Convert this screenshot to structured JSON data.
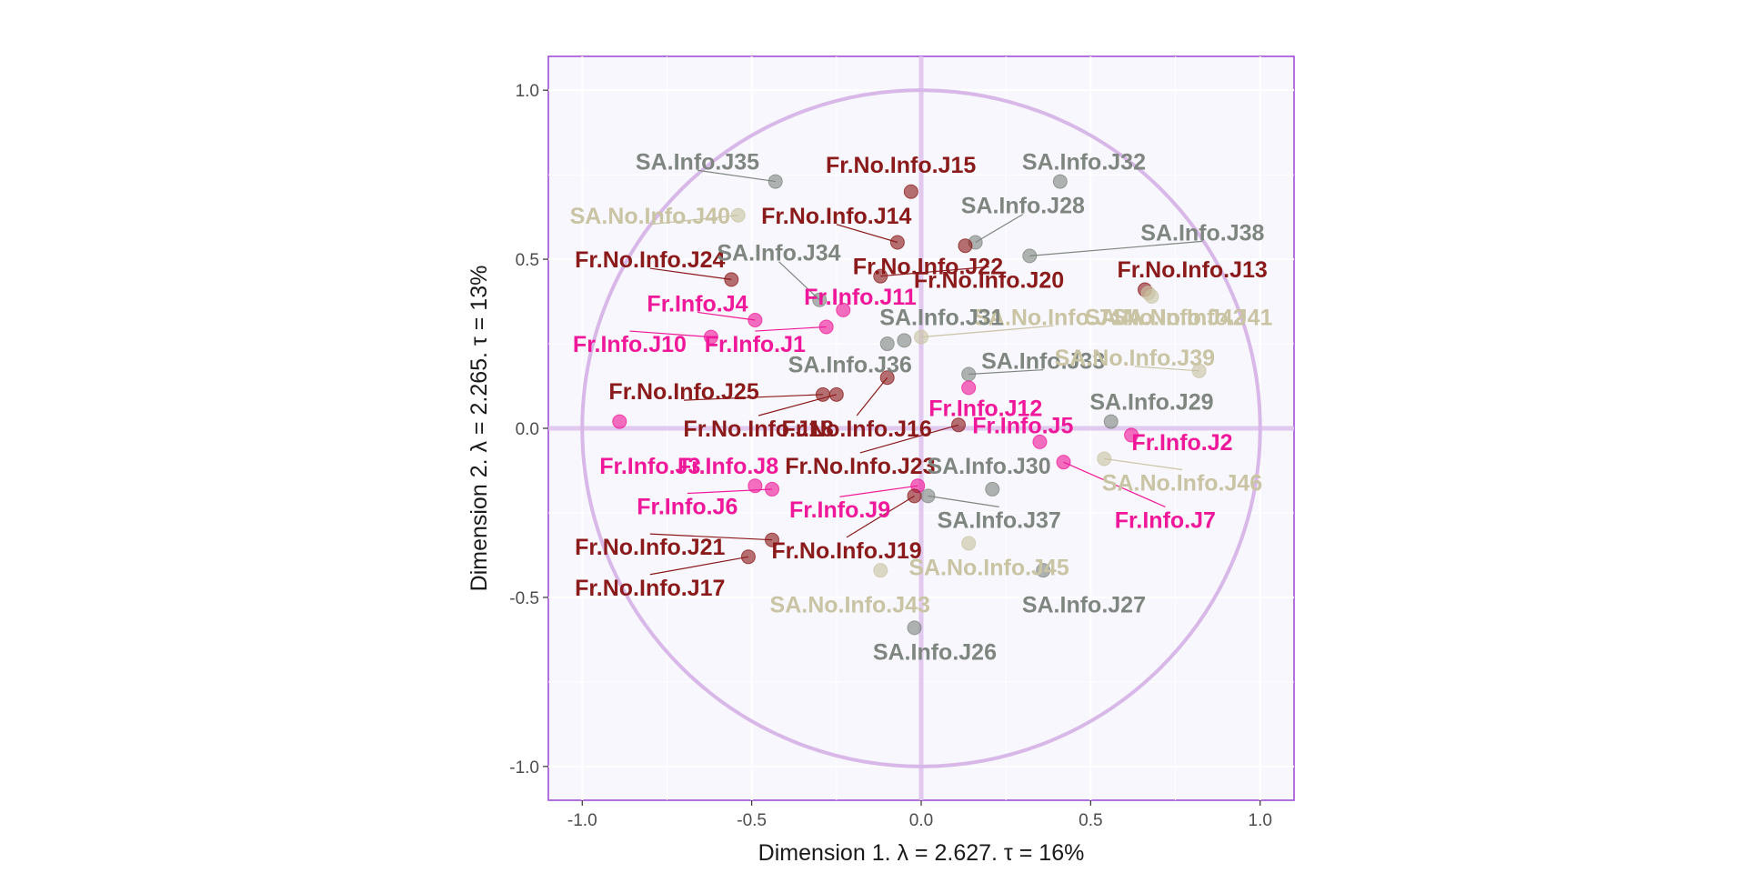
{
  "chart_data": {
    "type": "scatter",
    "xlabel": "Dimension 1.   λ = 2.627.  τ = 16%",
    "ylabel": "Dimension 2.   λ = 2.265.  τ = 13%",
    "xlim": [
      -1.1,
      1.1
    ],
    "ylim": [
      -1.1,
      1.1
    ],
    "x_ticks": [
      -1.0,
      -0.5,
      0.0,
      0.5,
      1.0
    ],
    "y_ticks": [
      -1.0,
      -0.5,
      0.0,
      0.5,
      1.0
    ],
    "x_tick_labels": [
      "-1.0",
      "-0.5",
      "0.0",
      "0.5",
      "1.0"
    ],
    "y_tick_labels": [
      "-1.0",
      "-0.5",
      "0.0",
      "0.5",
      "1.0"
    ],
    "grid": true,
    "unit_circle": true,
    "legend": "none",
    "colors": {
      "Fr.No.Info": "#8b1a1a",
      "Fr.Info": "#f0189a",
      "SA.Info": "#7f8680",
      "SA.No.Info": "#c9c4a3",
      "panel_bg": "#f8f7fd",
      "panel_border": "#a24fd9",
      "circle": "#d8b8e8"
    },
    "points": [
      {
        "label": "SA.Info.J35",
        "group": "SA.Info",
        "x": -0.43,
        "y": 0.73,
        "lx": -0.66,
        "ly": 0.79
      },
      {
        "label": "Fr.No.Info.J15",
        "group": "Fr.No.Info",
        "x": -0.03,
        "y": 0.7,
        "lx": -0.06,
        "ly": 0.78
      },
      {
        "label": "SA.Info.J32",
        "group": "SA.Info",
        "x": 0.41,
        "y": 0.73,
        "lx": 0.48,
        "ly": 0.79
      },
      {
        "label": "SA.No.Info.J40",
        "group": "SA.No.Info",
        "x": -0.54,
        "y": 0.63,
        "lx": -0.8,
        "ly": 0.63
      },
      {
        "label": "Fr.No.Info.J14",
        "group": "Fr.No.Info",
        "x": -0.07,
        "y": 0.55,
        "lx": -0.25,
        "ly": 0.63
      },
      {
        "label": "SA.Info.J28",
        "group": "SA.Info",
        "x": 0.16,
        "y": 0.55,
        "lx": 0.3,
        "ly": 0.66
      },
      {
        "label": "SA.Info.J38",
        "group": "SA.Info",
        "x": 0.32,
        "y": 0.51,
        "lx": 0.83,
        "ly": 0.58
      },
      {
        "label": "Fr.No.Info.J24",
        "group": "Fr.No.Info",
        "x": -0.56,
        "y": 0.44,
        "lx": -0.8,
        "ly": 0.5
      },
      {
        "label": "SA.Info.J34",
        "group": "SA.Info",
        "x": -0.3,
        "y": 0.38,
        "lx": -0.42,
        "ly": 0.52
      },
      {
        "label": "Fr.No.Info.J22",
        "group": "Fr.No.Info",
        "x": 0.13,
        "y": 0.54,
        "lx": 0.02,
        "ly": 0.48
      },
      {
        "label": "Fr.No.Info.J20",
        "group": "Fr.No.Info",
        "x": -0.12,
        "y": 0.45,
        "lx": 0.2,
        "ly": 0.44
      },
      {
        "label": "Fr.No.Info.J13",
        "group": "Fr.No.Info",
        "x": 0.66,
        "y": 0.41,
        "lx": 0.8,
        "ly": 0.47
      },
      {
        "label": "Fr.Info.J11",
        "group": "Fr.Info",
        "x": -0.23,
        "y": 0.35,
        "lx": -0.18,
        "ly": 0.39
      },
      {
        "label": "Fr.Info.J4",
        "group": "Fr.Info",
        "x": -0.49,
        "y": 0.32,
        "lx": -0.66,
        "ly": 0.37
      },
      {
        "label": "SA.No.Info.J42",
        "group": "SA.No.Info",
        "x": 0.67,
        "y": 0.4,
        "lx": 0.72,
        "ly": 0.33
      },
      {
        "label": "SA.No.Info.J44",
        "group": "SA.No.Info",
        "x": 0.0,
        "y": 0.27,
        "lx": 0.39,
        "ly": 0.33
      },
      {
        "label": "SA.Info.J31",
        "group": "SA.Info",
        "x": -0.05,
        "y": 0.26,
        "lx": 0.06,
        "ly": 0.33
      },
      {
        "label": "SA.No.Info.J41",
        "group": "SA.No.Info",
        "x": 0.68,
        "y": 0.39,
        "lx": 0.8,
        "ly": 0.33
      },
      {
        "label": "Fr.Info.J10",
        "group": "Fr.Info",
        "x": -0.62,
        "y": 0.27,
        "lx": -0.86,
        "ly": 0.25
      },
      {
        "label": "Fr.Info.J1",
        "group": "Fr.Info",
        "x": -0.28,
        "y": 0.3,
        "lx": -0.49,
        "ly": 0.25
      },
      {
        "label": "SA.Info.J33",
        "group": "SA.Info",
        "x": 0.14,
        "y": 0.16,
        "lx": 0.36,
        "ly": 0.2
      },
      {
        "label": "SA.No.Info.J39",
        "group": "SA.No.Info",
        "x": 0.82,
        "y": 0.17,
        "lx": 0.63,
        "ly": 0.21
      },
      {
        "label": "SA.Info.J36",
        "group": "SA.Info",
        "x": -0.1,
        "y": 0.25,
        "lx": -0.21,
        "ly": 0.19
      },
      {
        "label": "Fr.No.Info.J25",
        "group": "Fr.No.Info",
        "x": -0.29,
        "y": 0.1,
        "lx": -0.7,
        "ly": 0.11
      },
      {
        "label": "Fr.Info.J12",
        "group": "Fr.Info",
        "x": 0.14,
        "y": 0.12,
        "lx": 0.19,
        "ly": 0.06
      },
      {
        "label": "SA.Info.J29",
        "group": "SA.Info",
        "x": 0.56,
        "y": 0.02,
        "lx": 0.68,
        "ly": 0.08
      },
      {
        "label": "Fr.No.Info.J18",
        "group": "Fr.No.Info",
        "x": -0.25,
        "y": 0.1,
        "lx": -0.48,
        "ly": 0.0
      },
      {
        "label": "Fr.No.Info.J16",
        "group": "Fr.No.Info",
        "x": -0.1,
        "y": 0.15,
        "lx": -0.19,
        "ly": 0.0
      },
      {
        "label": "Fr.Info.J5",
        "group": "Fr.Info",
        "x": 0.35,
        "y": -0.04,
        "lx": 0.3,
        "ly": 0.01
      },
      {
        "label": "Fr.Info.J2",
        "group": "Fr.Info",
        "x": 0.62,
        "y": -0.02,
        "lx": 0.77,
        "ly": -0.04
      },
      {
        "label": "Fr.Info.J3",
        "group": "Fr.Info",
        "x": -0.89,
        "y": 0.02,
        "lx": -0.8,
        "ly": -0.11
      },
      {
        "label": "Fr.Info.J8",
        "group": "Fr.Info",
        "x": -0.49,
        "y": -0.17,
        "lx": -0.57,
        "ly": -0.11
      },
      {
        "label": "Fr.No.Info.J23",
        "group": "Fr.No.Info",
        "x": 0.11,
        "y": 0.01,
        "lx": -0.18,
        "ly": -0.11
      },
      {
        "label": "SA.Info.J30",
        "group": "SA.Info",
        "x": 0.21,
        "y": -0.18,
        "lx": 0.2,
        "ly": -0.11
      },
      {
        "label": "SA.No.Info.J46",
        "group": "SA.No.Info",
        "x": 0.54,
        "y": -0.09,
        "lx": 0.77,
        "ly": -0.16
      },
      {
        "label": "Fr.Info.J6",
        "group": "Fr.Info",
        "x": -0.44,
        "y": -0.18,
        "lx": -0.69,
        "ly": -0.23
      },
      {
        "label": "Fr.Info.J9",
        "group": "Fr.Info",
        "x": -0.01,
        "y": -0.17,
        "lx": -0.24,
        "ly": -0.24
      },
      {
        "label": "SA.Info.J37",
        "group": "SA.Info",
        "x": 0.02,
        "y": -0.2,
        "lx": 0.23,
        "ly": -0.27
      },
      {
        "label": "Fr.Info.J7",
        "group": "Fr.Info",
        "x": 0.42,
        "y": -0.1,
        "lx": 0.72,
        "ly": -0.27
      },
      {
        "label": "Fr.No.Info.J21",
        "group": "Fr.No.Info",
        "x": -0.44,
        "y": -0.33,
        "lx": -0.8,
        "ly": -0.35
      },
      {
        "label": "Fr.No.Info.J19",
        "group": "Fr.No.Info",
        "x": -0.02,
        "y": -0.2,
        "lx": -0.22,
        "ly": -0.36
      },
      {
        "label": "SA.No.Info.J45",
        "group": "SA.No.Info",
        "x": 0.14,
        "y": -0.34,
        "lx": 0.2,
        "ly": -0.41
      },
      {
        "label": "SA.Info.J27",
        "group": "SA.Info",
        "x": 0.36,
        "y": -0.42,
        "lx": 0.48,
        "ly": -0.52
      },
      {
        "label": "Fr.No.Info.J17",
        "group": "Fr.No.Info",
        "x": -0.51,
        "y": -0.38,
        "lx": -0.8,
        "ly": -0.47
      },
      {
        "label": "SA.No.Info.J43",
        "group": "SA.No.Info",
        "x": -0.12,
        "y": -0.42,
        "lx": -0.21,
        "ly": -0.52
      },
      {
        "label": "SA.Info.J26",
        "group": "SA.Info",
        "x": -0.02,
        "y": -0.59,
        "lx": 0.04,
        "ly": -0.66
      }
    ]
  }
}
